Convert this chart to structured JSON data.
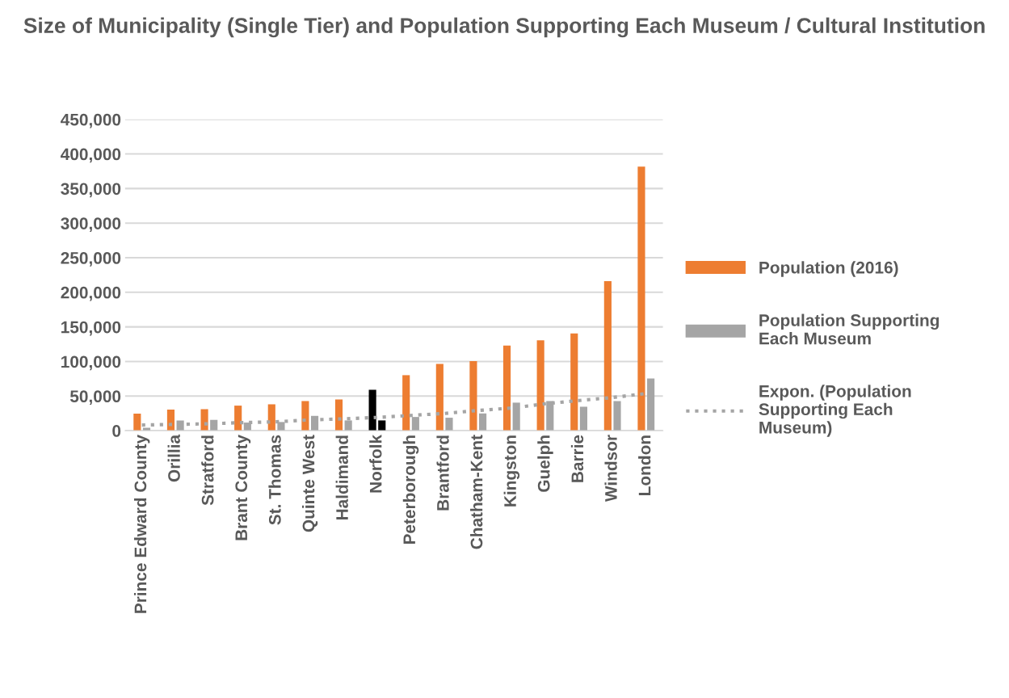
{
  "chart_data": {
    "type": "bar",
    "title": "Size of Municipality (Single Tier) and Population Supporting Each Museum / Cultural Institution",
    "categories": [
      "Prince Edward County",
      "Orillia",
      "Stratford",
      "Brant County",
      "St. Thomas",
      "Quinte West",
      "Haldimand",
      "Norfolk",
      "Peterborough",
      "Brantford",
      "Chatham-Kent",
      "Kingston",
      "Guelph",
      "Barrie",
      "Windsor",
      "London"
    ],
    "series": [
      {
        "name": "Population (2016)",
        "color": "#ed7d31",
        "colors": [
          "#ed7d31",
          "#ed7d31",
          "#ed7d31",
          "#ed7d31",
          "#ed7d31",
          "#ed7d31",
          "#ed7d31",
          "#000000",
          "#ed7d31",
          "#ed7d31",
          "#ed7d31",
          "#ed7d31",
          "#ed7d31",
          "#ed7d31",
          "#ed7d31",
          "#ed7d31"
        ],
        "values": [
          24500,
          30400,
          31100,
          36200,
          38100,
          42800,
          45100,
          59100,
          80200,
          96500,
          100400,
          123000,
          130700,
          140500,
          216000,
          381700
        ]
      },
      {
        "name": "Population Supporting Each Museum",
        "color": "#a5a5a5",
        "colors": [
          "#a5a5a5",
          "#a5a5a5",
          "#a5a5a5",
          "#a5a5a5",
          "#a5a5a5",
          "#a5a5a5",
          "#a5a5a5",
          "#000000",
          "#a5a5a5",
          "#a5a5a5",
          "#a5a5a5",
          "#a5a5a5",
          "#a5a5a5",
          "#a5a5a5",
          "#a5a5a5",
          "#a5a5a5"
        ],
        "values": [
          4300,
          14800,
          15600,
          11700,
          12500,
          21400,
          14800,
          14800,
          19800,
          18700,
          24900,
          40500,
          42800,
          34600,
          42800,
          75500
        ]
      },
      {
        "name": "Expon. (Population Supporting Each Museum)",
        "type": "line",
        "line_style": "dotted",
        "marker": "none",
        "color": "#a5a5a5",
        "values": [
          8200,
          9000,
          10000,
          11700,
          12800,
          15600,
          17100,
          19100,
          22000,
          24900,
          29200,
          32700,
          38900,
          43600,
          47900,
          53700
        ]
      }
    ],
    "ylim": [
      0,
      450000
    ],
    "yticks": [
      {
        "value": 0,
        "label": "0"
      },
      {
        "value": 50000,
        "label": "50,000"
      },
      {
        "value": 100000,
        "label": "100,000"
      },
      {
        "value": 150000,
        "label": "150,000"
      },
      {
        "value": 200000,
        "label": "200,000"
      },
      {
        "value": 250000,
        "label": "250,000"
      },
      {
        "value": 300000,
        "label": "300,000"
      },
      {
        "value": 350000,
        "label": "350,000"
      },
      {
        "value": 400000,
        "label": "400,000"
      },
      {
        "value": 450000,
        "label": "450,000"
      }
    ],
    "grid": "y",
    "legend": "right"
  }
}
